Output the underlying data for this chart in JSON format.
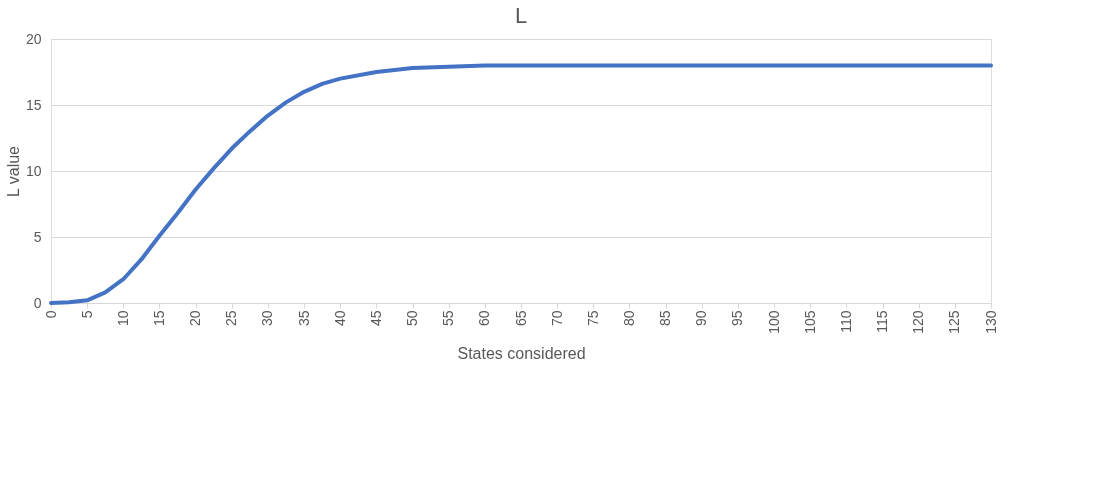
{
  "chart_data": {
    "type": "line",
    "title": "L",
    "xlabel": "States considered",
    "ylabel": "L value",
    "x": [
      0,
      2.5,
      5,
      7.5,
      10,
      12.5,
      15,
      17.5,
      20,
      22.5,
      25,
      27.5,
      30,
      32.5,
      35,
      37.5,
      40,
      45,
      50,
      55,
      60,
      70,
      80,
      90,
      100,
      110,
      120,
      130
    ],
    "series": [
      {
        "color": "#4472c4",
        "values": [
          0,
          0.05,
          0.2,
          0.8,
          1.8,
          3.3,
          5.1,
          6.8,
          8.6,
          10.2,
          11.7,
          13.0,
          14.2,
          15.2,
          16.0,
          16.6,
          17.0,
          17.5,
          17.8,
          17.9,
          18.0,
          18.0,
          18.0,
          18.0,
          18.0,
          18.0,
          18.0,
          18.0
        ]
      }
    ],
    "xlim": [
      0,
      130
    ],
    "xticks": [
      0,
      5,
      10,
      15,
      20,
      25,
      30,
      35,
      40,
      45,
      50,
      55,
      60,
      65,
      70,
      75,
      80,
      85,
      90,
      95,
      100,
      105,
      110,
      115,
      120,
      125,
      130
    ],
    "ylim": [
      0,
      20
    ],
    "yticks": [
      0,
      5,
      10,
      15,
      20
    ],
    "grid": "y",
    "legend": false,
    "line_style": "solid",
    "marker": "none"
  }
}
